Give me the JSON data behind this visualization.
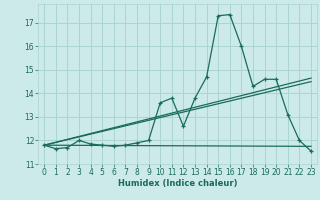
{
  "xlabel": "Humidex (Indice chaleur)",
  "bg_color": "#cceae8",
  "grid_color": "#aad4d2",
  "line_color": "#1a6b5a",
  "xlim": [
    -0.5,
    23.5
  ],
  "ylim": [
    11,
    17.8
  ],
  "yticks": [
    11,
    12,
    13,
    14,
    15,
    16,
    17
  ],
  "xticks": [
    0,
    1,
    2,
    3,
    4,
    5,
    6,
    7,
    8,
    9,
    10,
    11,
    12,
    13,
    14,
    15,
    16,
    17,
    18,
    19,
    20,
    21,
    22,
    23
  ],
  "series": [
    {
      "x": [
        0,
        1,
        2,
        3,
        4,
        5,
        6,
        7,
        8,
        9,
        10,
        11,
        12,
        13,
        14,
        15,
        16,
        17,
        18,
        19,
        20,
        21,
        22,
        23
      ],
      "y": [
        11.8,
        11.65,
        11.7,
        12.0,
        11.85,
        11.8,
        11.75,
        11.8,
        11.9,
        12.0,
        13.6,
        13.8,
        12.6,
        13.8,
        14.7,
        17.3,
        17.35,
        16.0,
        14.3,
        14.6,
        14.6,
        13.1,
        12.0,
        11.55
      ],
      "marker": "+"
    },
    {
      "x": [
        0,
        23
      ],
      "y": [
        11.8,
        14.5
      ]
    },
    {
      "x": [
        0,
        23
      ],
      "y": [
        11.8,
        14.65
      ]
    },
    {
      "x": [
        0,
        23
      ],
      "y": [
        11.8,
        11.75
      ]
    }
  ]
}
